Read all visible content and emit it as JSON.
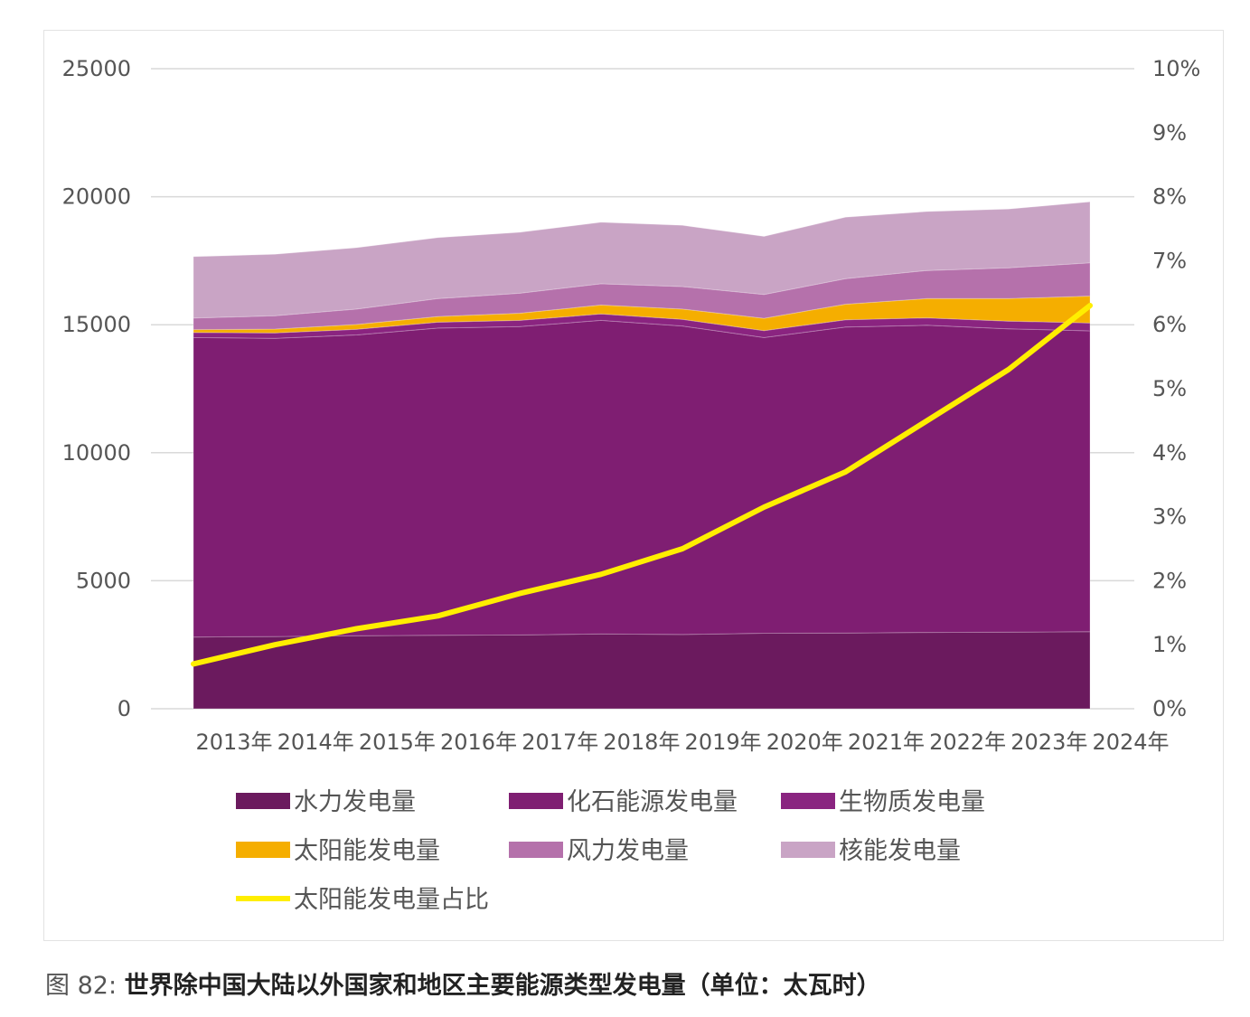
{
  "caption": {
    "figure_number": "图 82:",
    "title": "世界除中国大陆以外国家和地区主要能源类型发电量（单位：太瓦时）"
  },
  "chart_data": {
    "type": "area",
    "stacked": true,
    "categories": [
      "2013年",
      "2014年",
      "2015年",
      "2016年",
      "2017年",
      "2018年",
      "2019年",
      "2020年",
      "2021年",
      "2022年",
      "2023年",
      "2024年"
    ],
    "y_left": {
      "ticks": [
        "0",
        "5000",
        "10000",
        "15000",
        "20000",
        "25000"
      ],
      "ylim": [
        0,
        25000
      ]
    },
    "y_right": {
      "ticks": [
        "0%",
        "1%",
        "2%",
        "3%",
        "4%",
        "5%",
        "6%",
        "7%",
        "8%",
        "9%",
        "10%"
      ],
      "ylim": [
        0,
        10
      ]
    },
    "grid": true,
    "legend_position": "bottom",
    "series": [
      {
        "name": "水力发电量",
        "kind": "area",
        "color": "#6b1a5e",
        "values": [
          2800,
          2820,
          2850,
          2870,
          2880,
          2920,
          2900,
          2950,
          2960,
          2980,
          2990,
          3010
        ]
      },
      {
        "name": "化石能源发电量",
        "kind": "area",
        "color": "#7f1e72",
        "values": [
          11700,
          11650,
          11750,
          12000,
          12050,
          12250,
          12050,
          11550,
          11950,
          12000,
          11850,
          11750
        ]
      },
      {
        "name": "生物质发电量",
        "kind": "area",
        "color": "#8a2480",
        "values": [
          200,
          210,
          220,
          230,
          240,
          250,
          260,
          270,
          280,
          290,
          300,
          310
        ]
      },
      {
        "name": "太阳能发电量",
        "kind": "area",
        "color": "#f5ae00",
        "values": [
          110,
          150,
          190,
          220,
          280,
          350,
          400,
          480,
          610,
          750,
          880,
          1050
        ]
      },
      {
        "name": "风力发电量",
        "kind": "area",
        "color": "#b571ab",
        "values": [
          450,
          520,
          600,
          700,
          780,
          830,
          880,
          930,
          1000,
          1100,
          1200,
          1300
        ]
      },
      {
        "name": "核能发电量",
        "kind": "area",
        "color": "#c9a4c5",
        "values": [
          2400,
          2400,
          2400,
          2380,
          2380,
          2400,
          2390,
          2270,
          2400,
          2300,
          2300,
          2380
        ]
      },
      {
        "name": "太阳能发电量占比",
        "kind": "line",
        "axis": "right",
        "color": "#ffee00",
        "values": [
          0.7,
          1.0,
          1.25,
          1.45,
          1.8,
          2.1,
          2.5,
          3.15,
          3.7,
          4.5,
          5.3,
          6.3
        ]
      }
    ]
  }
}
